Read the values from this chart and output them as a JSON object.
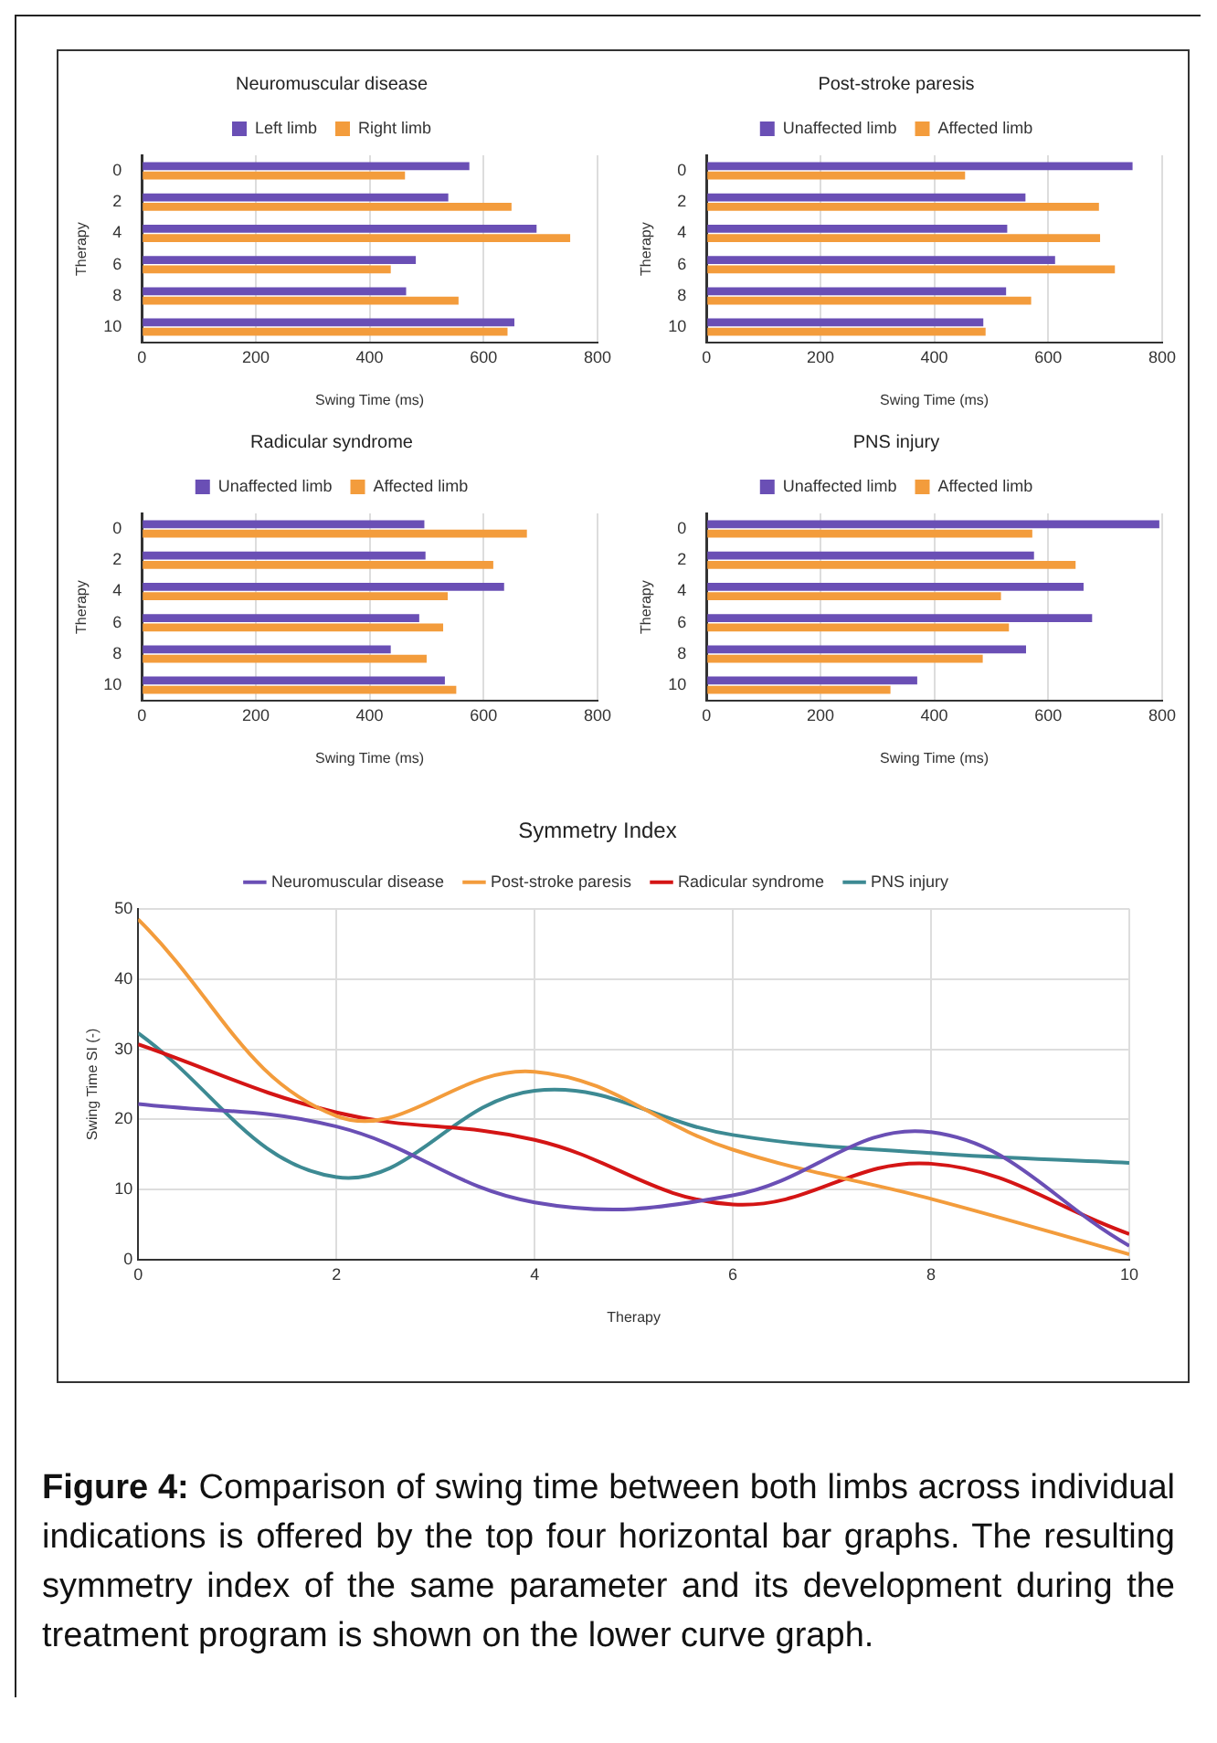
{
  "chart_data": [
    {
      "type": "bar",
      "orientation": "horizontal",
      "title": "Neuromuscular disease",
      "categories": [
        "0",
        "2",
        "4",
        "6",
        "8",
        "10"
      ],
      "series": [
        {
          "name": "Left limb",
          "color": "#6a4fb5",
          "values": [
            575,
            538,
            693,
            481,
            464,
            654
          ]
        },
        {
          "name": "Right limb",
          "color": "#f39c3c",
          "values": [
            462,
            649,
            752,
            437,
            556,
            642
          ]
        }
      ],
      "xlim": [
        0,
        800
      ],
      "xticks": [
        0,
        200,
        400,
        600,
        800
      ],
      "xlabel": "Swing Time (ms)",
      "ylabel": "Therapy",
      "grid": "x",
      "legend": "top"
    },
    {
      "type": "bar",
      "orientation": "horizontal",
      "title": "Post-stroke paresis",
      "categories": [
        "0",
        "2",
        "4",
        "6",
        "8",
        "10"
      ],
      "series": [
        {
          "name": "Unaffected limb",
          "color": "#6a4fb5",
          "values": [
            748,
            560,
            528,
            612,
            526,
            486
          ]
        },
        {
          "name": "Affected limb",
          "color": "#f39c3c",
          "values": [
            454,
            689,
            691,
            717,
            570,
            490
          ]
        }
      ],
      "xlim": [
        0,
        800
      ],
      "xticks": [
        0,
        200,
        400,
        600,
        800
      ],
      "xlabel": "Swing Time (ms)",
      "ylabel": "Therapy",
      "grid": "x",
      "legend": "top"
    },
    {
      "type": "bar",
      "orientation": "horizontal",
      "title": "Radicular syndrome",
      "categories": [
        "0",
        "2",
        "4",
        "6",
        "8",
        "10"
      ],
      "series": [
        {
          "name": "Unaffected limb",
          "color": "#6a4fb5",
          "values": [
            496,
            498,
            636,
            487,
            437,
            532
          ]
        },
        {
          "name": "Affected limb",
          "color": "#f39c3c",
          "values": [
            676,
            617,
            537,
            529,
            500,
            552
          ]
        }
      ],
      "xlim": [
        0,
        800
      ],
      "xticks": [
        0,
        200,
        400,
        600,
        800
      ],
      "xlabel": "Swing Time (ms)",
      "ylabel": "Therapy",
      "grid": "x",
      "legend": "top"
    },
    {
      "type": "bar",
      "orientation": "horizontal",
      "title": "PNS injury",
      "categories": [
        "0",
        "2",
        "4",
        "6",
        "8",
        "10"
      ],
      "series": [
        {
          "name": "Unaffected limb",
          "color": "#6a4fb5",
          "values": [
            795,
            575,
            662,
            677,
            561,
            370
          ]
        },
        {
          "name": "Affected limb",
          "color": "#f39c3c",
          "values": [
            572,
            648,
            517,
            531,
            485,
            323
          ]
        }
      ],
      "xlim": [
        0,
        800
      ],
      "xticks": [
        0,
        200,
        400,
        600,
        800
      ],
      "xlabel": "Swing Time (ms)",
      "ylabel": "Therapy",
      "grid": "x",
      "legend": "top"
    },
    {
      "type": "line",
      "title": "Symmetry Index",
      "x": [
        0,
        2,
        4,
        6,
        8,
        10
      ],
      "series": [
        {
          "name": "Neuromuscular disease",
          "color": "#6a4fb5",
          "values": [
            22.2,
            19,
            8.2,
            9.2,
            18.2,
            2
          ]
        },
        {
          "name": "Post-stroke paresis",
          "color": "#f39c3c",
          "values": [
            48.5,
            20.5,
            26.8,
            15.7,
            8.7,
            0.8
          ]
        },
        {
          "name": "Radicular syndrome",
          "color": "#d41515",
          "values": [
            30.7,
            21,
            17.1,
            7.9,
            13.7,
            3.7
          ]
        },
        {
          "name": "PNS injury",
          "color": "#3d8a93",
          "values": [
            32.3,
            11.8,
            24.1,
            17.8,
            15.2,
            13.8
          ]
        }
      ],
      "xlim": [
        0,
        10
      ],
      "xticks": [
        0,
        2,
        4,
        6,
        8,
        10
      ],
      "ylim": [
        0,
        50
      ],
      "yticks": [
        0,
        10,
        20,
        30,
        40,
        50
      ],
      "xlabel": "Therapy",
      "ylabel": "Swing Time SI (-)",
      "grid": true,
      "legend": "top",
      "marker": "none",
      "line_style": "solid",
      "annotations": [
        "Figure 4: Comparison of swing time between both limbs across individual indications is offered by the top four horizontal bar graphs. The resulting symmetry index of the same parameter and its development during the treatment program is shown on the lower curve graph."
      ]
    }
  ]
}
